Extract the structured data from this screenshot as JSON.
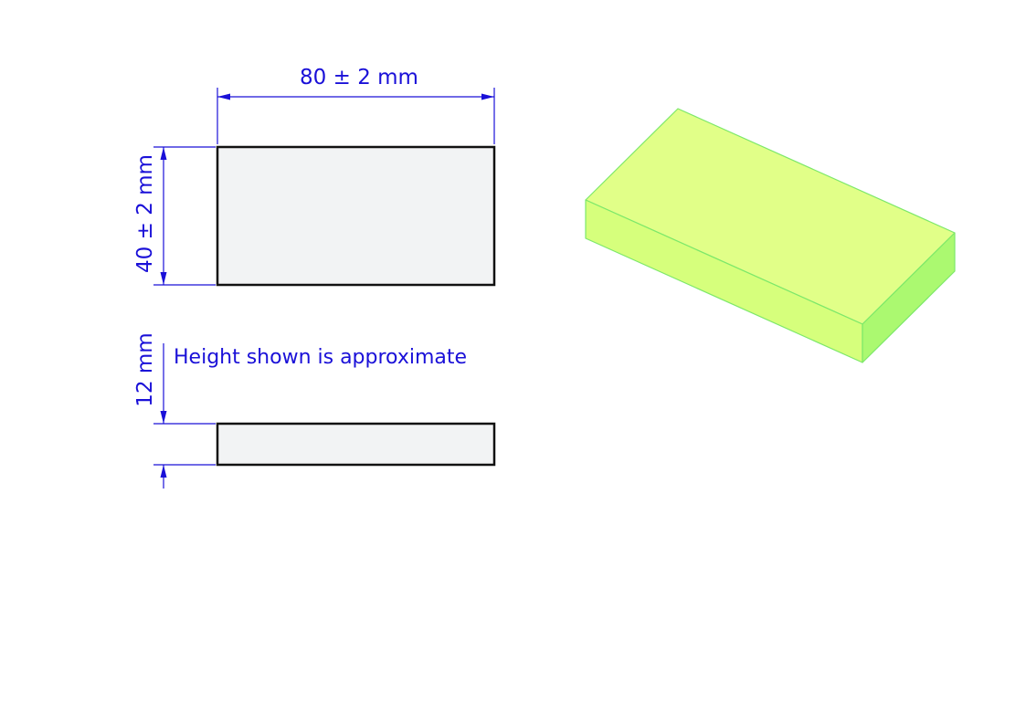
{
  "dimensions": {
    "length_label": "80 ± 2 mm",
    "width_label": "40 ± 2 mm",
    "height_label": "12 mm"
  },
  "note": "Height shown is approximate",
  "colors": {
    "dimension": "#1a10d8",
    "outline": "#111111",
    "view_fill": "#f2f3f4",
    "iso_top": "#e1ff88",
    "iso_front": "#d6ff7c",
    "iso_side": "#abf970",
    "iso_edge": "#7de86a"
  }
}
